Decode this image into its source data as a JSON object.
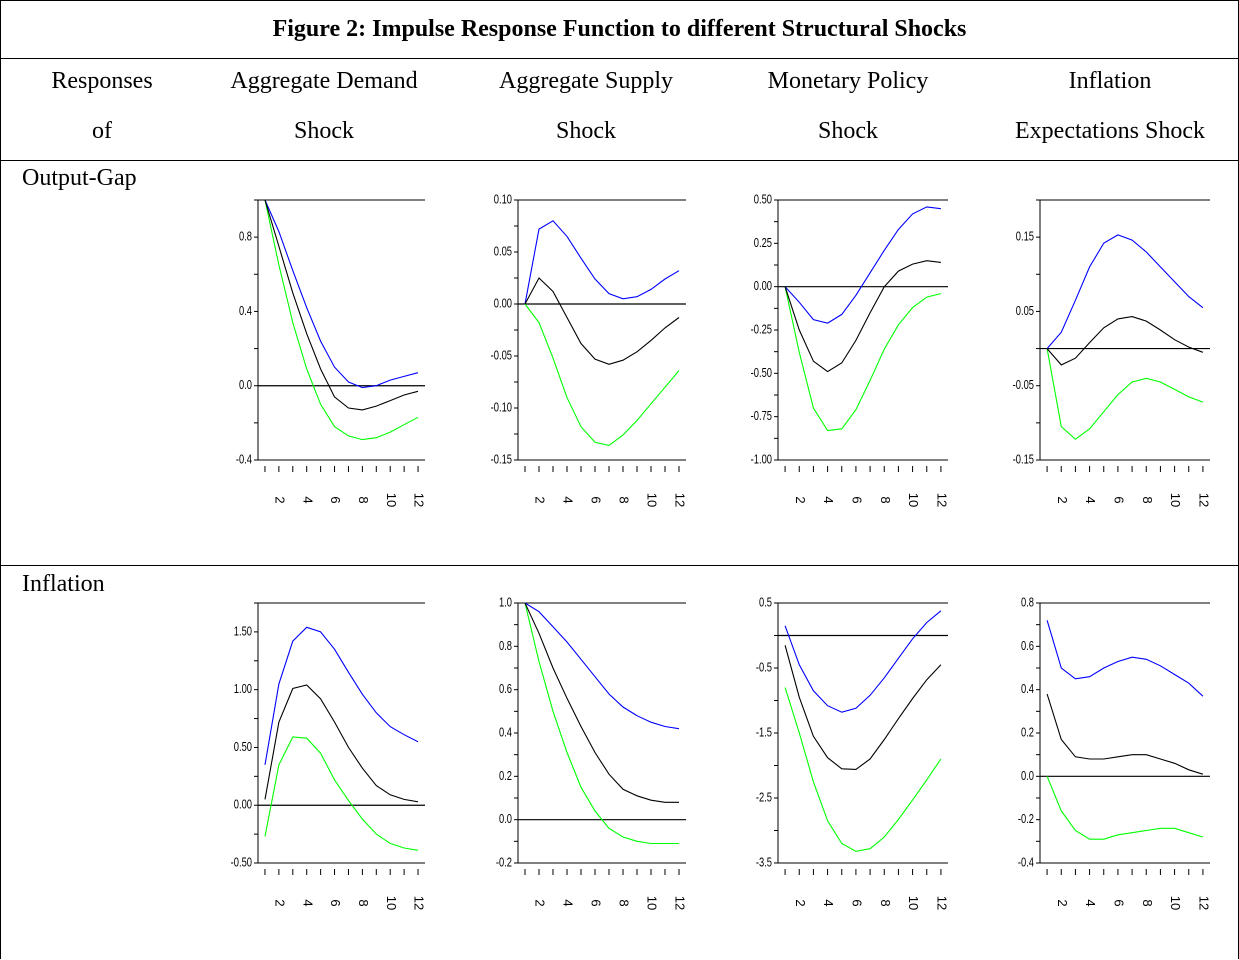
{
  "figure_title": "Figure 2: Impulse Response Function to different Structural Shocks",
  "header": {
    "col0": [
      "Responses",
      "of"
    ],
    "col1": [
      "Aggregate Demand",
      "Shock"
    ],
    "col2": [
      "Aggregate Supply",
      "Shock"
    ],
    "col3": [
      "Monetary Policy",
      "Shock"
    ],
    "col4": [
      "Inflation",
      "Expectations Shock"
    ]
  },
  "rows": [
    "Output-Gap",
    "Inflation"
  ],
  "colors": {
    "upper": "#0000ff",
    "center": "#000000",
    "lower": "#00ff00"
  },
  "chart_data": [
    {
      "type": "line",
      "row": "Output-Gap",
      "shock": "Aggregate Demand Shock",
      "x": [
        1,
        2,
        3,
        4,
        5,
        6,
        7,
        8,
        9,
        10,
        11,
        12
      ],
      "xticks": [
        2,
        4,
        6,
        8,
        10,
        12
      ],
      "ylim": [
        -0.4,
        1.0
      ],
      "yticks": [
        -0.4,
        0.0,
        0.4,
        0.8
      ],
      "ytick_labels": [
        "-0.4",
        "0.0",
        "0.4",
        "0.8"
      ],
      "series": [
        {
          "values": [
            1.0,
            0.83,
            0.62,
            0.42,
            0.24,
            0.1,
            0.02,
            -0.01,
            0.0,
            0.03,
            0.05,
            0.07
          ]
        },
        {
          "values": [
            1.0,
            0.75,
            0.5,
            0.28,
            0.09,
            -0.06,
            -0.12,
            -0.13,
            -0.11,
            -0.08,
            -0.05,
            -0.03
          ]
        },
        {
          "values": [
            1.0,
            0.65,
            0.34,
            0.09,
            -0.1,
            -0.22,
            -0.27,
            -0.29,
            -0.28,
            -0.25,
            -0.21,
            -0.17
          ]
        }
      ]
    },
    {
      "type": "line",
      "row": "Output-Gap",
      "shock": "Aggregate Supply Shock",
      "x": [
        1,
        2,
        3,
        4,
        5,
        6,
        7,
        8,
        9,
        10,
        11,
        12
      ],
      "xticks": [
        2,
        4,
        6,
        8,
        10,
        12
      ],
      "ylim": [
        -0.15,
        0.1
      ],
      "yticks": [
        -0.15,
        -0.1,
        -0.05,
        0.0,
        0.05,
        0.1
      ],
      "ytick_labels": [
        "-0.15",
        "-0.10",
        "-0.05",
        "0.00",
        "0.05",
        "0.10"
      ],
      "series": [
        {
          "values": [
            0.0,
            0.072,
            0.08,
            0.065,
            0.044,
            0.024,
            0.01,
            0.005,
            0.007,
            0.014,
            0.024,
            0.032
          ]
        },
        {
          "values": [
            0.0,
            0.025,
            0.012,
            -0.013,
            -0.038,
            -0.053,
            -0.058,
            -0.054,
            -0.046,
            -0.035,
            -0.023,
            -0.013
          ]
        },
        {
          "values": [
            0.0,
            -0.018,
            -0.052,
            -0.09,
            -0.118,
            -0.133,
            -0.136,
            -0.126,
            -0.112,
            -0.096,
            -0.08,
            -0.064
          ]
        }
      ]
    },
    {
      "type": "line",
      "row": "Output-Gap",
      "shock": "Monetary Policy Shock",
      "x": [
        1,
        2,
        3,
        4,
        5,
        6,
        7,
        8,
        9,
        10,
        11,
        12
      ],
      "xticks": [
        2,
        4,
        6,
        8,
        10,
        12
      ],
      "ylim": [
        -1.0,
        0.5
      ],
      "yticks": [
        -1.0,
        -0.75,
        -0.5,
        -0.25,
        0.0,
        0.25,
        0.5
      ],
      "ytick_labels": [
        "-1.00",
        "-0.75",
        "-0.50",
        "-0.25",
        "0.00",
        "0.25",
        "0.50"
      ],
      "series": [
        {
          "values": [
            0.0,
            -0.09,
            -0.19,
            -0.21,
            -0.16,
            -0.05,
            0.08,
            0.21,
            0.33,
            0.42,
            0.46,
            0.45
          ]
        },
        {
          "values": [
            0.0,
            -0.25,
            -0.43,
            -0.49,
            -0.44,
            -0.31,
            -0.15,
            0.0,
            0.09,
            0.13,
            0.15,
            0.14
          ]
        },
        {
          "values": [
            0.0,
            -0.38,
            -0.7,
            -0.83,
            -0.82,
            -0.71,
            -0.54,
            -0.36,
            -0.22,
            -0.12,
            -0.06,
            -0.04
          ]
        }
      ]
    },
    {
      "type": "line",
      "row": "Output-Gap",
      "shock": "Inflation Expectations Shock",
      "x": [
        1,
        2,
        3,
        4,
        5,
        6,
        7,
        8,
        9,
        10,
        11,
        12
      ],
      "xticks": [
        2,
        4,
        6,
        8,
        10,
        12
      ],
      "ylim": [
        -0.15,
        0.2
      ],
      "yticks": [
        -0.15,
        -0.05,
        0.05,
        0.15
      ],
      "ytick_labels": [
        "-0.15",
        "-0.05",
        "0.05",
        "0.15"
      ],
      "series": [
        {
          "values": [
            0.0,
            0.022,
            0.065,
            0.11,
            0.142,
            0.153,
            0.146,
            0.13,
            0.11,
            0.09,
            0.07,
            0.055
          ]
        },
        {
          "values": [
            0.0,
            -0.022,
            -0.013,
            0.008,
            0.028,
            0.04,
            0.043,
            0.037,
            0.025,
            0.012,
            0.002,
            -0.005
          ]
        },
        {
          "values": [
            0.0,
            -0.105,
            -0.122,
            -0.108,
            -0.085,
            -0.062,
            -0.045,
            -0.04,
            -0.045,
            -0.055,
            -0.065,
            -0.072
          ]
        }
      ]
    },
    {
      "type": "line",
      "row": "Inflation",
      "shock": "Aggregate Demand Shock",
      "x": [
        1,
        2,
        3,
        4,
        5,
        6,
        7,
        8,
        9,
        10,
        11,
        12
      ],
      "xticks": [
        2,
        4,
        6,
        8,
        10,
        12
      ],
      "ylim": [
        -0.5,
        1.75
      ],
      "yticks": [
        -0.5,
        0.0,
        0.5,
        1.0,
        1.5
      ],
      "ytick_labels": [
        "-0.50",
        "0.00",
        "0.50",
        "1.00",
        "1.50"
      ],
      "series": [
        {
          "values": [
            0.35,
            1.05,
            1.42,
            1.54,
            1.5,
            1.35,
            1.15,
            0.96,
            0.8,
            0.68,
            0.61,
            0.55
          ]
        },
        {
          "values": [
            0.05,
            0.72,
            1.01,
            1.04,
            0.92,
            0.72,
            0.5,
            0.32,
            0.17,
            0.09,
            0.05,
            0.03
          ]
        },
        {
          "values": [
            -0.27,
            0.35,
            0.59,
            0.58,
            0.45,
            0.22,
            0.04,
            -0.12,
            -0.25,
            -0.33,
            -0.37,
            -0.39
          ]
        }
      ]
    },
    {
      "type": "line",
      "row": "Inflation",
      "shock": "Aggregate Supply Shock",
      "x": [
        1,
        2,
        3,
        4,
        5,
        6,
        7,
        8,
        9,
        10,
        11,
        12
      ],
      "xticks": [
        2,
        4,
        6,
        8,
        10,
        12
      ],
      "ylim": [
        -0.2,
        1.0
      ],
      "yticks": [
        -0.2,
        0.0,
        0.2,
        0.4,
        0.6,
        0.8,
        1.0
      ],
      "ytick_labels": [
        "-0.2",
        "0.0",
        "0.2",
        "0.4",
        "0.6",
        "0.8",
        "1.0"
      ],
      "series": [
        {
          "values": [
            1.0,
            0.96,
            0.89,
            0.82,
            0.74,
            0.66,
            0.58,
            0.52,
            0.48,
            0.45,
            0.43,
            0.42
          ]
        },
        {
          "values": [
            1.0,
            0.86,
            0.7,
            0.56,
            0.43,
            0.31,
            0.21,
            0.14,
            0.11,
            0.09,
            0.08,
            0.08
          ]
        },
        {
          "values": [
            1.0,
            0.73,
            0.5,
            0.31,
            0.15,
            0.04,
            -0.04,
            -0.08,
            -0.1,
            -0.11,
            -0.11,
            -0.11
          ]
        }
      ]
    },
    {
      "type": "line",
      "row": "Inflation",
      "shock": "Monetary Policy Shock",
      "x": [
        1,
        2,
        3,
        4,
        5,
        6,
        7,
        8,
        9,
        10,
        11,
        12
      ],
      "xticks": [
        2,
        4,
        6,
        8,
        10,
        12
      ],
      "ylim": [
        -3.5,
        0.5
      ],
      "yticks": [
        -3.5,
        -2.5,
        -1.5,
        -0.5,
        0.5
      ],
      "ytick_labels": [
        "-3.5",
        "-2.5",
        "-1.5",
        "-0.5",
        "0.5"
      ],
      "series": [
        {
          "values": [
            0.15,
            -0.45,
            -0.85,
            -1.08,
            -1.18,
            -1.12,
            -0.92,
            -0.65,
            -0.35,
            -0.05,
            0.2,
            0.38
          ]
        },
        {
          "values": [
            -0.15,
            -0.95,
            -1.55,
            -1.88,
            -2.05,
            -2.06,
            -1.9,
            -1.6,
            -1.28,
            -0.97,
            -0.68,
            -0.45
          ]
        },
        {
          "values": [
            -0.8,
            -1.5,
            -2.25,
            -2.85,
            -3.2,
            -3.32,
            -3.28,
            -3.1,
            -2.83,
            -2.53,
            -2.22,
            -1.9
          ]
        }
      ]
    },
    {
      "type": "line",
      "row": "Inflation",
      "shock": "Inflation Expectations Shock",
      "x": [
        1,
        2,
        3,
        4,
        5,
        6,
        7,
        8,
        9,
        10,
        11,
        12
      ],
      "xticks": [
        2,
        4,
        6,
        8,
        10,
        12
      ],
      "ylim": [
        -0.4,
        0.8
      ],
      "yticks": [
        -0.4,
        -0.2,
        0.0,
        0.2,
        0.4,
        0.6,
        0.8
      ],
      "ytick_labels": [
        "-0.4",
        "-0.2",
        "0.0",
        "0.2",
        "0.4",
        "0.6",
        "0.8"
      ],
      "series": [
        {
          "values": [
            0.72,
            0.5,
            0.45,
            0.46,
            0.5,
            0.53,
            0.55,
            0.54,
            0.51,
            0.47,
            0.43,
            0.37
          ]
        },
        {
          "values": [
            0.38,
            0.17,
            0.09,
            0.08,
            0.08,
            0.09,
            0.1,
            0.1,
            0.08,
            0.06,
            0.03,
            0.01
          ]
        },
        {
          "values": [
            0.0,
            -0.16,
            -0.25,
            -0.29,
            -0.29,
            -0.27,
            -0.26,
            -0.25,
            -0.24,
            -0.24,
            -0.26,
            -0.28
          ]
        }
      ]
    }
  ]
}
